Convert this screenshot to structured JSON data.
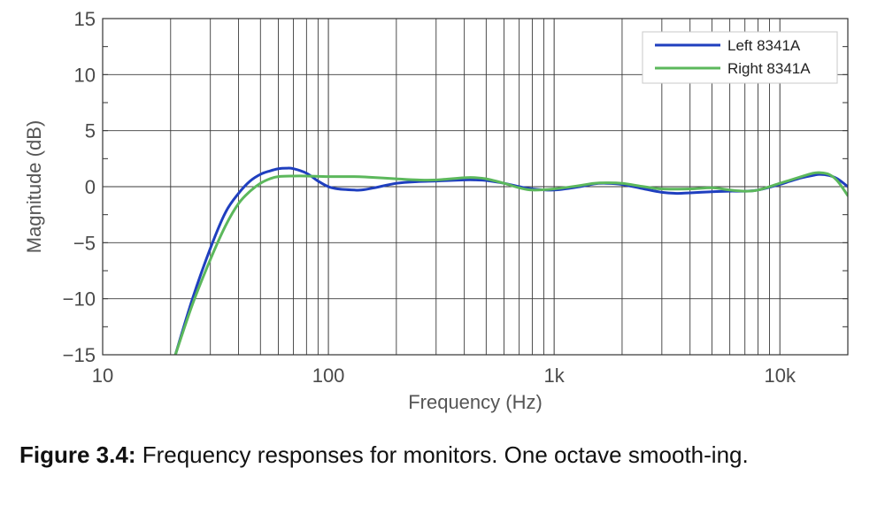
{
  "chart_data": {
    "type": "line",
    "xlabel": "Frequency (Hz)",
    "ylabel": "Magnitude (dB)",
    "x_scale": "log",
    "xlim": [
      10,
      20000
    ],
    "ylim": [
      -15,
      15
    ],
    "x_ticks": [
      10,
      100,
      1000,
      10000
    ],
    "x_tick_labels": [
      "10",
      "100",
      "1k",
      "10k"
    ],
    "y_ticks": [
      15,
      10,
      5,
      0,
      -5,
      -10,
      -15
    ],
    "y_tick_labels": [
      "15",
      "10",
      "5",
      "0",
      "−5",
      "−10",
      "−15"
    ],
    "grid": true,
    "legend_position": "top-right",
    "series": [
      {
        "name": "Left 8341A",
        "color": "#1f3fbf",
        "x": [
          21,
          25,
          30,
          35,
          40,
          45,
          50,
          55,
          60,
          65,
          70,
          80,
          90,
          100,
          110,
          130,
          140,
          160,
          200,
          250,
          300,
          400,
          450,
          500,
          600,
          700,
          800,
          1000,
          1300,
          1500,
          1700,
          2000,
          2500,
          3000,
          3500,
          4000,
          5000,
          6000,
          7000,
          8000,
          10000,
          12000,
          14000,
          15000,
          16500,
          18000,
          20000
        ],
        "y": [
          -15,
          -10,
          -5.5,
          -2.3,
          -0.6,
          0.5,
          1.1,
          1.4,
          1.6,
          1.65,
          1.6,
          1.2,
          0.5,
          0.0,
          -0.2,
          -0.3,
          -0.3,
          -0.1,
          0.3,
          0.45,
          0.5,
          0.6,
          0.6,
          0.55,
          0.3,
          0.0,
          -0.2,
          -0.3,
          0.0,
          0.25,
          0.3,
          0.2,
          -0.2,
          -0.5,
          -0.6,
          -0.55,
          -0.45,
          -0.4,
          -0.4,
          -0.3,
          0.2,
          0.7,
          1.0,
          1.1,
          1.0,
          0.7,
          0.0
        ]
      },
      {
        "name": "Right 8341A",
        "color": "#5cb85c",
        "x": [
          21,
          25,
          30,
          35,
          40,
          45,
          50,
          55,
          60,
          70,
          80,
          100,
          130,
          150,
          200,
          250,
          300,
          400,
          450,
          500,
          600,
          700,
          800,
          1000,
          1300,
          1500,
          1700,
          2000,
          2500,
          3000,
          4000,
          5000,
          6000,
          7000,
          8000,
          10000,
          12000,
          14000,
          15000,
          16500,
          18000,
          20000
        ],
        "y": [
          -15,
          -10.5,
          -6.5,
          -3.5,
          -1.5,
          -0.4,
          0.3,
          0.7,
          0.9,
          0.95,
          0.95,
          0.9,
          0.9,
          0.85,
          0.7,
          0.6,
          0.6,
          0.8,
          0.8,
          0.7,
          0.3,
          -0.1,
          -0.3,
          -0.2,
          0.1,
          0.3,
          0.35,
          0.3,
          0.0,
          -0.2,
          -0.2,
          -0.1,
          -0.3,
          -0.4,
          -0.3,
          0.3,
          0.8,
          1.2,
          1.25,
          1.1,
          0.5,
          -0.8
        ]
      }
    ]
  },
  "caption": {
    "label": "Figure 3.4:",
    "text": "Frequency responses for monitors.  One octave smooth-ing."
  }
}
